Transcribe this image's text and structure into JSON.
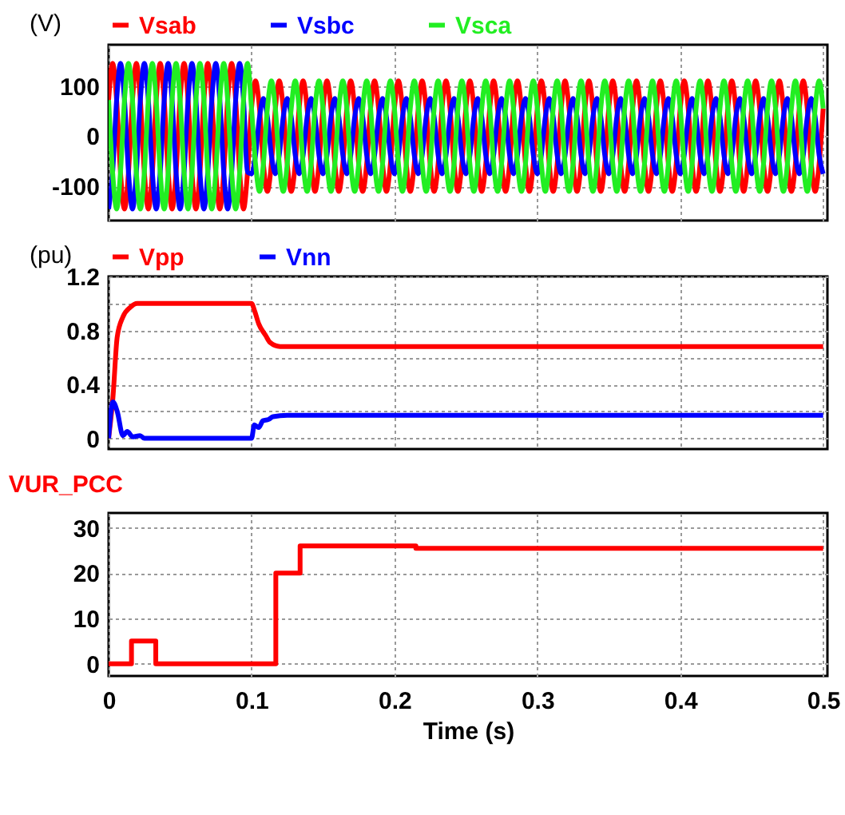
{
  "chart_data": [
    {
      "type": "line",
      "ylabel": "(V)",
      "legend": "top",
      "grid": true,
      "tick_labels": "y",
      "xlim": [
        0,
        0.503
      ],
      "xticks": [
        0,
        0.1,
        0.2,
        0.3,
        0.4,
        0.5
      ],
      "ylim": [
        -168,
        182
      ],
      "yticks": [
        -100,
        0,
        100
      ],
      "x": [
        0,
        0.0028,
        0.0056,
        0.0083,
        0.0111,
        0.0139,
        0.0167,
        0.0194,
        0.0222,
        0.025,
        0.0278,
        0.0306,
        0.0333,
        0.0361,
        0.0389,
        0.0417,
        0.0444,
        0.0472,
        0.05,
        0.0528,
        0.0556,
        0.0583,
        0.0611,
        0.0639,
        0.0667,
        0.0694,
        0.0722,
        0.075,
        0.0778,
        0.0806,
        0.0833,
        0.0861,
        0.0889,
        0.0917,
        0.0944,
        0.0972,
        0.1,
        0.1028,
        0.1056,
        0.1083,
        0.1111,
        0.1139,
        0.1167,
        0.1194,
        0.1222,
        0.125,
        0.1278,
        0.1306,
        0.1333,
        0.1361,
        0.1389,
        0.1417,
        0.1444,
        0.1472,
        0.15,
        0.1528,
        0.1556,
        0.1583,
        0.1611,
        0.1639,
        0.1667,
        0.1694,
        0.1722,
        0.175,
        0.1778,
        0.1806,
        0.1833,
        0.1861,
        0.1889,
        0.1917,
        0.1944,
        0.1972,
        0.2,
        0.2028,
        0.2056,
        0.2083,
        0.2111,
        0.2139,
        0.2167,
        0.2194,
        0.2222,
        0.225,
        0.2278,
        0.2306,
        0.2333,
        0.2361,
        0.2389,
        0.2417,
        0.2444,
        0.2472,
        0.25,
        0.2528,
        0.2556,
        0.2583,
        0.2611,
        0.2639,
        0.2667,
        0.2694,
        0.2722,
        0.275,
        0.2778,
        0.2806,
        0.2833,
        0.2861,
        0.2889,
        0.2917,
        0.2944,
        0.2972,
        0.3,
        0.3028,
        0.3056,
        0.3083,
        0.3111,
        0.3139,
        0.3167,
        0.3194,
        0.3222,
        0.325,
        0.3278,
        0.3306,
        0.3333,
        0.3361,
        0.3389,
        0.3417,
        0.3444,
        0.3472,
        0.35,
        0.3528,
        0.3556,
        0.3583,
        0.3611,
        0.3639,
        0.3667,
        0.3694,
        0.3722,
        0.375,
        0.3778,
        0.3806,
        0.3833,
        0.3861,
        0.3889,
        0.3917,
        0.3944,
        0.3972,
        0.4,
        0.4028,
        0.4056,
        0.4083,
        0.4111,
        0.4139,
        0.4167,
        0.4194,
        0.4222,
        0.425,
        0.4278,
        0.4306,
        0.4333,
        0.4361,
        0.4389,
        0.4417,
        0.4444,
        0.4472,
        0.45,
        0.4528,
        0.4556,
        0.4583,
        0.4611,
        0.4639,
        0.4667,
        0.4694,
        0.4722,
        0.475,
        0.4778,
        0.4806,
        0.4833,
        0.4861,
        0.4889,
        0.4917,
        0.4944,
        0.4972,
        0.5
      ],
      "series": [
        {
          "name": "Vsab",
          "color": "#ff0000",
          "values": [
            72,
            145,
            72,
            -72,
            -145,
            -72,
            72,
            145,
            72,
            -72,
            -145,
            -72,
            72,
            145,
            72,
            -72,
            -145,
            -72,
            72,
            145,
            72,
            -72,
            -145,
            -72,
            72,
            145,
            72,
            -72,
            -145,
            -72,
            72,
            145,
            72,
            -72,
            -145,
            -72,
            55,
            110,
            55,
            -55,
            -110,
            -55,
            55,
            110,
            55,
            -55,
            -110,
            -55,
            55,
            110,
            55,
            -55,
            -110,
            -55,
            55,
            110,
            55,
            -55,
            -110,
            -55,
            55,
            110,
            55,
            -55,
            -110,
            -55,
            55,
            110,
            55,
            -55,
            -110,
            -55,
            55,
            110,
            55,
            -55,
            -110,
            -55,
            55,
            110,
            55,
            -55,
            -110,
            -55,
            55,
            110,
            55,
            -55,
            -110,
            -55,
            55,
            110,
            55,
            -55,
            -110,
            -55,
            55,
            110,
            55,
            -55,
            -110,
            -55,
            55,
            110,
            55,
            -55,
            -110,
            -55,
            55,
            110,
            55,
            -55,
            -110,
            -55,
            55,
            110,
            55,
            -55,
            -110,
            -55,
            55,
            110,
            55,
            -55,
            -110,
            -55,
            55,
            110,
            55,
            -55,
            -110,
            -55,
            55,
            110,
            55,
            -55,
            -110,
            -55,
            55,
            110,
            55,
            -55,
            -110,
            -55,
            55,
            110,
            55,
            -55,
            -110,
            -55,
            55,
            110,
            55,
            -55,
            -110,
            -55,
            55,
            110,
            55,
            -55,
            -110,
            -55,
            55,
            110,
            55,
            -55,
            -110,
            -55,
            55,
            110,
            55,
            -55,
            -110,
            -55,
            55,
            110,
            55,
            -55,
            -110,
            -55,
            55
          ]
        },
        {
          "name": "Vsbc",
          "color": "#0000ff",
          "values": [
            -145,
            -72,
            72,
            145,
            72,
            -72,
            -145,
            -72,
            72,
            145,
            72,
            -72,
            -145,
            -72,
            72,
            145,
            72,
            -72,
            -145,
            -72,
            72,
            145,
            72,
            -72,
            -145,
            -72,
            72,
            145,
            72,
            -72,
            -145,
            -72,
            72,
            145,
            72,
            -72,
            -75,
            -38,
            38,
            75,
            38,
            -38,
            -75,
            -38,
            38,
            75,
            38,
            -38,
            -75,
            -38,
            38,
            75,
            38,
            -38,
            -75,
            -38,
            38,
            75,
            38,
            -38,
            -75,
            -38,
            38,
            75,
            38,
            -38,
            -75,
            -38,
            38,
            75,
            38,
            -38,
            -75,
            -38,
            38,
            75,
            38,
            -38,
            -75,
            -38,
            38,
            75,
            38,
            -38,
            -75,
            -38,
            38,
            75,
            38,
            -38,
            -75,
            -38,
            38,
            75,
            38,
            -38,
            -75,
            -38,
            38,
            75,
            38,
            -38,
            -75,
            -38,
            38,
            75,
            38,
            -38,
            -75,
            -38,
            38,
            75,
            38,
            -38,
            -75,
            -38,
            38,
            75,
            38,
            -38,
            -75,
            -38,
            38,
            75,
            38,
            -38,
            -75,
            -38,
            38,
            75,
            38,
            -38,
            -75,
            -38,
            38,
            75,
            38,
            -38,
            -75,
            -38,
            38,
            75,
            38,
            -38,
            -75,
            -38,
            38,
            75,
            38,
            -38,
            -75,
            -38,
            38,
            75,
            38,
            -38,
            -75,
            -38,
            38,
            75,
            38,
            -38,
            -75,
            -38,
            38,
            75,
            38,
            -38,
            -75,
            -38,
            38,
            75,
            38,
            -38,
            -75,
            -38,
            38,
            75,
            38,
            -38,
            -75
          ]
        },
        {
          "name": "Vsca",
          "color": "#22ee22",
          "values": [
            72,
            -72,
            -145,
            -72,
            72,
            145,
            72,
            -72,
            -145,
            -72,
            72,
            145,
            72,
            -72,
            -145,
            -72,
            72,
            145,
            72,
            -72,
            -145,
            -72,
            72,
            145,
            72,
            -72,
            -145,
            -72,
            72,
            145,
            72,
            -72,
            -145,
            -72,
            72,
            145,
            55,
            -55,
            -110,
            -55,
            55,
            110,
            55,
            -55,
            -110,
            -55,
            55,
            110,
            55,
            -55,
            -110,
            -55,
            55,
            110,
            55,
            -55,
            -110,
            -55,
            55,
            110,
            55,
            -55,
            -110,
            -55,
            55,
            110,
            55,
            -55,
            -110,
            -55,
            55,
            110,
            55,
            -55,
            -110,
            -55,
            55,
            110,
            55,
            -55,
            -110,
            -55,
            55,
            110,
            55,
            -55,
            -110,
            -55,
            55,
            110,
            55,
            -55,
            -110,
            -55,
            55,
            110,
            55,
            -55,
            -110,
            -55,
            55,
            110,
            55,
            -55,
            -110,
            -55,
            55,
            110,
            55,
            -55,
            -110,
            -55,
            55,
            110,
            55,
            -55,
            -110,
            -55,
            55,
            110,
            55,
            -55,
            -110,
            -55,
            55,
            110,
            55,
            -55,
            -110,
            -55,
            55,
            110,
            55,
            -55,
            -110,
            -55,
            55,
            110,
            55,
            -55,
            -110,
            -55,
            55,
            110,
            55,
            -55,
            -110,
            -55,
            55,
            110,
            55,
            -55,
            -110,
            -55,
            55,
            110,
            55,
            -55,
            -110,
            -55,
            55,
            110,
            55,
            -55,
            -110,
            -55,
            55,
            110,
            55,
            -55,
            -110,
            -55,
            55,
            110,
            55,
            -55,
            -110,
            -55,
            55,
            110,
            55
          ]
        }
      ]
    },
    {
      "type": "line",
      "ylabel": "(pu)",
      "legend": "top",
      "grid": true,
      "tick_labels": "y",
      "xlim": [
        0,
        0.503
      ],
      "xticks": [
        0,
        0.1,
        0.2,
        0.3,
        0.4,
        0.5
      ],
      "ylim": [
        -0.08,
        1.2
      ],
      "yticks": [
        0,
        {
          "value": 0.2,
          "label": null
        },
        0.4,
        {
          "value": 0.6,
          "label": null
        },
        0.8,
        {
          "value": 1.0,
          "label": null
        },
        1.2
      ],
      "series": [
        {
          "name": "Vpp",
          "color": "#ff0000",
          "x": [
            0,
            0.003,
            0.006,
            0.01,
            0.015,
            0.02,
            0.1,
            0.102,
            0.105,
            0.11,
            0.113,
            0.12,
            0.5
          ],
          "values": [
            0,
            0.3,
            0.75,
            0.9,
            0.97,
            1.0,
            1.0,
            0.95,
            0.85,
            0.76,
            0.71,
            0.68,
            0.68
          ]
        },
        {
          "name": "Vnn",
          "color": "#0000ff",
          "x": [
            0,
            0.003,
            0.006,
            0.01,
            0.013,
            0.017,
            0.022,
            0.025,
            0.1,
            0.102,
            0.105,
            0.108,
            0.112,
            0.115,
            0.125,
            0.5
          ],
          "values": [
            0,
            0.27,
            0.2,
            0.02,
            0.05,
            0.01,
            0.02,
            0,
            0,
            0.1,
            0.08,
            0.13,
            0.14,
            0.16,
            0.17,
            0.17
          ]
        }
      ]
    },
    {
      "type": "line",
      "title": "VUR_PCC",
      "xlabel": "Time (s)",
      "grid": true,
      "xlim": [
        0,
        0.503
      ],
      "xticks": [
        0,
        0.1,
        0.2,
        0.3,
        0.4,
        0.5
      ],
      "ylim": [
        -2.7,
        33.3
      ],
      "yticks": [
        0,
        10,
        20,
        30
      ],
      "series": [
        {
          "type": "step",
          "color": "#ff0000",
          "x": [
            0,
            0.016,
            0.033,
            0.117,
            0.134,
            0.215,
            0.5
          ],
          "values": [
            0,
            5,
            0,
            20,
            26,
            25.5,
            25.5
          ]
        }
      ]
    }
  ]
}
